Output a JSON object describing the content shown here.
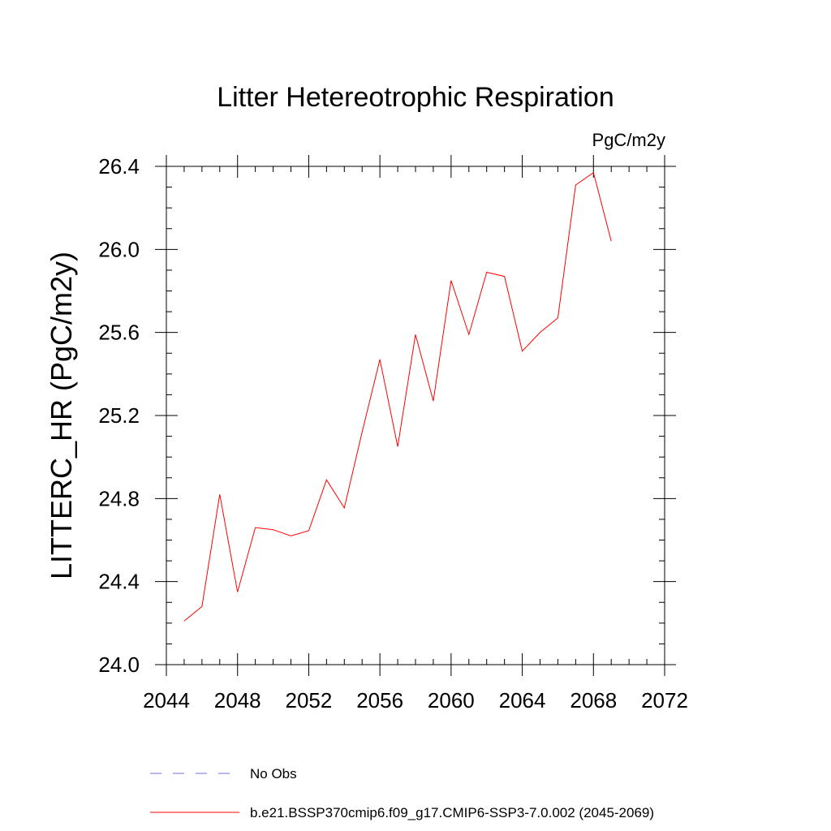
{
  "chart_data": {
    "type": "line",
    "title": "Litter Hetereotrophic Respiration",
    "units_label": "PgC/m2y",
    "ylabel": "LITTERC_HR  (PgC/m2y)",
    "xlabel": "",
    "xlim": [
      2044,
      2072
    ],
    "ylim": [
      24.0,
      26.4
    ],
    "x_ticks": [
      2044,
      2048,
      2052,
      2056,
      2060,
      2064,
      2068,
      2072
    ],
    "x_tick_labels": [
      "2044",
      "2048",
      "2052",
      "2056",
      "2060",
      "2064",
      "2068",
      "2072"
    ],
    "y_ticks": [
      24.0,
      24.4,
      24.8,
      25.2,
      25.6,
      26.0,
      26.4
    ],
    "y_tick_labels": [
      "24.0",
      "24.4",
      "24.8",
      "25.2",
      "25.6",
      "26.0",
      "26.4"
    ],
    "grid": false,
    "legend_position": "bottom",
    "series": [
      {
        "name": "b.e21.BSSP370cmip6.f09_g17.CMIP6-SSP3-7.0.002 (2045-2069)",
        "color": "#ff0000",
        "style": "solid",
        "x": [
          2045,
          2046,
          2047,
          2048,
          2049,
          2050,
          2051,
          2052,
          2053,
          2054,
          2055,
          2056,
          2057,
          2058,
          2059,
          2060,
          2061,
          2062,
          2063,
          2064,
          2065,
          2066,
          2067,
          2068,
          2069
        ],
        "values": [
          24.21,
          24.28,
          24.82,
          24.35,
          24.66,
          24.65,
          24.62,
          24.645,
          24.89,
          24.755,
          25.12,
          25.47,
          25.05,
          25.59,
          25.27,
          25.85,
          25.59,
          25.89,
          25.87,
          25.51,
          25.6,
          25.67,
          26.31,
          26.37,
          26.04
        ]
      },
      {
        "name": "No Obs",
        "color": "#6f6fd8",
        "style": "dashed",
        "x": [],
        "values": []
      }
    ]
  }
}
